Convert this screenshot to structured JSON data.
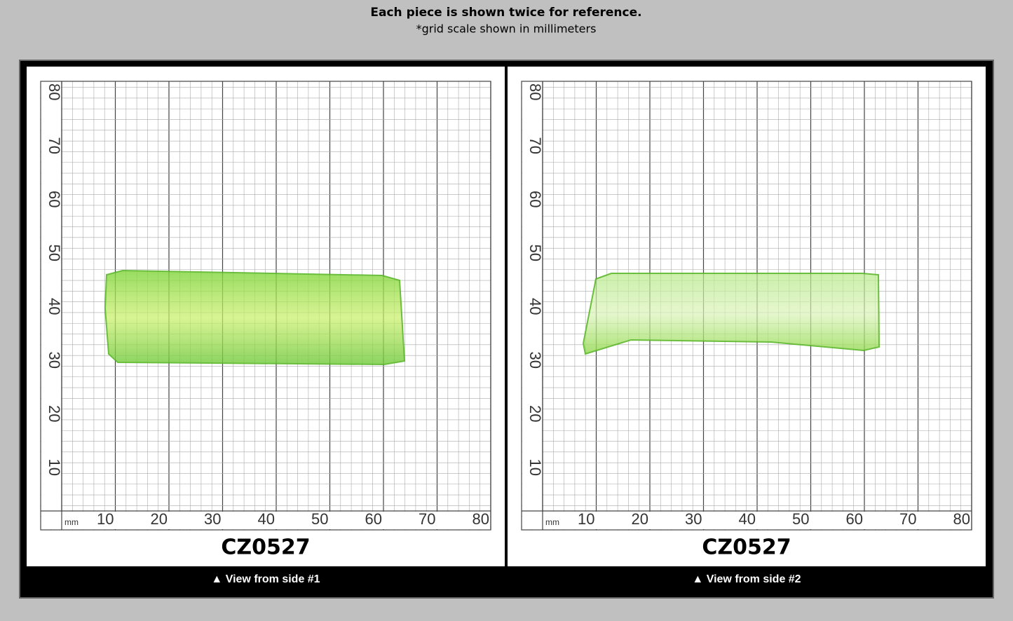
{
  "header": {
    "title": "Each piece is shown twice for reference.",
    "subtitle": "*grid scale shown in millimeters"
  },
  "panels": [
    {
      "code": "CZ0527",
      "caption": "▲ View from side #1",
      "unit": "mm",
      "x_labels": [
        10,
        20,
        30,
        40,
        50,
        60,
        70,
        80
      ],
      "y_labels": [
        10,
        20,
        30,
        40,
        50,
        60,
        70,
        80
      ]
    },
    {
      "code": "CZ0527",
      "caption": "▲ View from side #2",
      "unit": "mm",
      "x_labels": [
        10,
        20,
        30,
        40,
        50,
        60,
        70,
        80
      ],
      "y_labels": [
        10,
        20,
        30,
        40,
        50,
        60,
        70,
        80
      ]
    }
  ]
}
